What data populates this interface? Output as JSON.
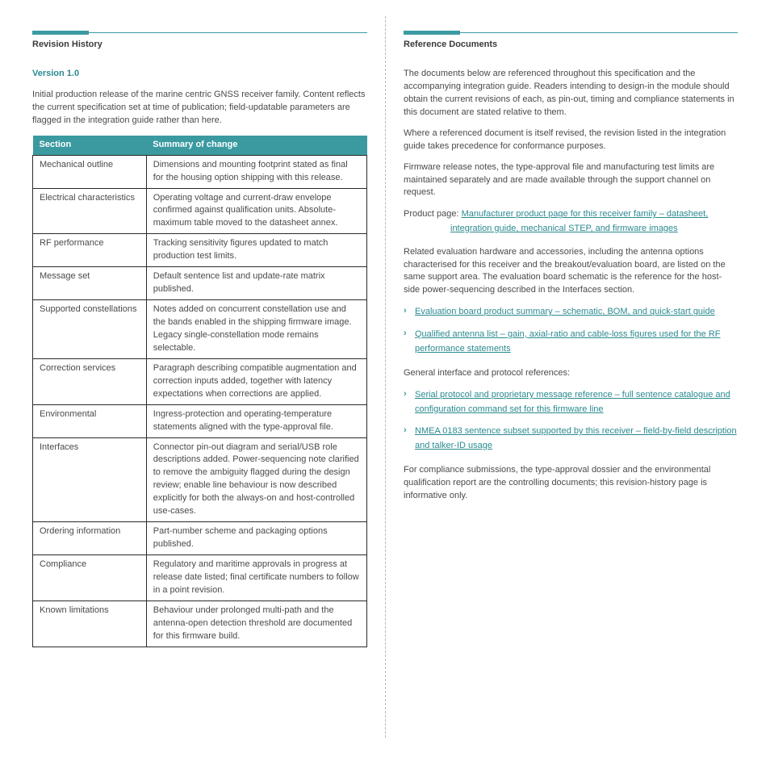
{
  "colors": {
    "accent": "#3a9aa0",
    "link": "#2a8a90",
    "text": "#4a4a4a",
    "table_border": "#2a2a2a",
    "header_text": "#ffffff",
    "background": "#ffffff"
  },
  "left": {
    "heading": "Revision History",
    "subheading": "Version 1.0",
    "intro": "Initial production release of the marine centric GNSS receiver family. Content reflects the current specification set at time of publication; field-updatable parameters are flagged in the integration guide rather than here.",
    "table": {
      "columns": [
        "Section",
        "Summary of change"
      ],
      "rows": [
        [
          "Mechanical outline",
          "Dimensions and mounting footprint stated as final for the housing option shipping with this release."
        ],
        [
          "Electrical characteristics",
          "Operating voltage and current-draw envelope confirmed against qualification units. Absolute-maximum table moved to the datasheet annex."
        ],
        [
          "RF performance",
          "Tracking sensitivity figures updated to match production test limits."
        ],
        [
          "Message set",
          "Default sentence list and update-rate matrix published."
        ],
        [
          "Supported constellations",
          "Notes added on concurrent constellation use and the bands enabled in the shipping firmware image. Legacy single-constellation mode remains selectable."
        ],
        [
          "Correction services",
          "Paragraph describing compatible augmentation and correction inputs added, together with latency expectations when corrections are applied."
        ],
        [
          "Environmental",
          "Ingress-protection and operating-temperature statements aligned with the type-approval file."
        ],
        [
          "Interfaces",
          "Connector pin-out diagram and serial/USB role descriptions added. Power-sequencing note clarified to remove the ambiguity flagged during the design review; enable line behaviour is now described explicitly for both the always-on and host-controlled use-cases."
        ],
        [
          "Ordering information",
          "Part-number scheme and packaging options published."
        ],
        [
          "Compliance",
          "Regulatory and maritime approvals in progress at release date listed; final certificate numbers to follow in a point revision."
        ],
        [
          "Known limitations",
          "Behaviour under prolonged multi-path and the antenna-open detection threshold are documented for this firmware build."
        ]
      ]
    }
  },
  "right": {
    "heading": "Reference Documents",
    "paragraphs_top": [
      "The documents below are referenced throughout this specification and the accompanying integration guide. Readers intending to design-in the module should obtain the current revisions of each, as pin-out, timing and compliance statements in this document are stated relative to them.",
      "Where a referenced document is itself revised, the revision listed in the integration guide takes precedence for conformance purposes.",
      "Firmware release notes, the type-approval file and manufacturing test limits are maintained separately and are made available through the support channel on request."
    ],
    "product_page_label": "Product page: ",
    "product_page_text": "Manufacturer product page for this receiver family – datasheet, integration guide, mechanical STEP, and firmware images",
    "mid_para": "Related evaluation hardware and accessories, including the antenna options characterised for this receiver and the breakout/evaluation board, are listed on the same support area. The evaluation board schematic is the reference for the host-side power-sequencing described in the Interfaces section.",
    "related": [
      "Evaluation board product summary – schematic, BOM, and quick-start guide",
      "Qualified antenna list – gain, axial-ratio and cable-loss figures used for the RF performance statements"
    ],
    "general_para": "General interface and protocol references:",
    "general_links": [
      "Serial protocol and proprietary message reference – full sentence catalogue and configuration command set for this firmware line",
      "NMEA 0183 sentence subset supported by this receiver – field-by-field description and talker-ID usage"
    ],
    "footer_para": "For compliance submissions, the type-approval dossier and the environmental qualification report are the controlling documents; this revision-history page is informative only."
  }
}
